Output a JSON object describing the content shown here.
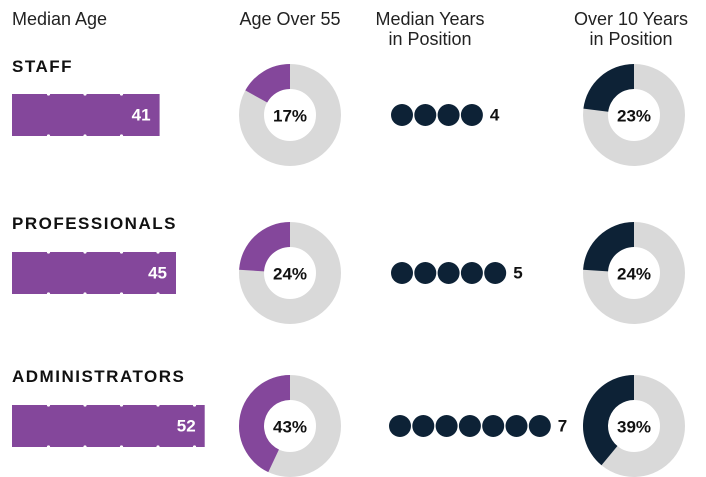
{
  "headers": {
    "median_age": "Median Age",
    "age_over_55": "Age Over 55",
    "median_years_line1": "Median Years",
    "median_years_line2": "in Position",
    "over10_line1": "Over 10 Years",
    "over10_line2": "in Position"
  },
  "colors": {
    "purple": "#84479b",
    "navy": "#0d2236",
    "gray": "#d9d9d9",
    "white": "#ffffff"
  },
  "chart_data": {
    "type": "table",
    "groups": [
      {
        "name": "STAFF",
        "median_age": 41,
        "median_age_label": "41",
        "age_over_55": 17,
        "age_over_55_label": "17%",
        "median_years": 4,
        "median_years_label": "4",
        "over_10_years": 23,
        "over_10_years_label": "23%"
      },
      {
        "name": "PROFESSIONALS",
        "median_age": 45,
        "median_age_label": "45",
        "age_over_55": 24,
        "age_over_55_label": "24%",
        "median_years": 5,
        "median_years_label": "5",
        "over_10_years": 24,
        "over_10_years_label": "24%"
      },
      {
        "name": "ADMINISTRATORS",
        "median_age": 52,
        "median_age_label": "52",
        "age_over_55": 43,
        "age_over_55_label": "43%",
        "median_years": 7,
        "median_years_label": "7",
        "over_10_years": 39,
        "over_10_years_label": "39%"
      }
    ]
  }
}
